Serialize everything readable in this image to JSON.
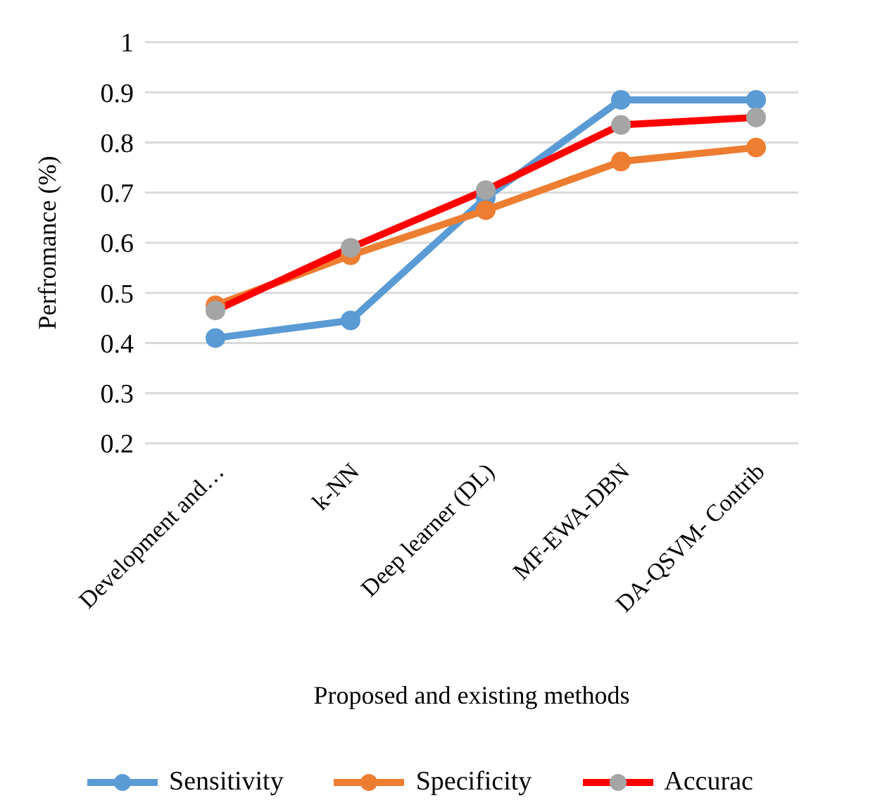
{
  "chart_data": {
    "type": "line",
    "xlabel": "Proposed and existing methods",
    "ylabel": "Perfromance (%)",
    "categories": [
      "Development and…",
      "k-NN",
      "Deep learner (DL)",
      "MF-EWA-DBN",
      "DA-QSVM- Contrib"
    ],
    "series": [
      {
        "name": "Sensitivity",
        "color": "#5b9bd5",
        "values": [
          0.41,
          0.445,
          0.69,
          0.885,
          0.885
        ]
      },
      {
        "name": "Specificity",
        "color": "#ed7d31",
        "values": [
          0.475,
          0.575,
          0.665,
          0.762,
          0.79
        ]
      },
      {
        "name": "Accurac",
        "color": "#ff0000",
        "values": [
          0.465,
          0.59,
          0.705,
          0.835,
          0.85
        ]
      }
    ],
    "ylim": [
      0.2,
      1
    ],
    "yticks": [
      0.2,
      0.3,
      0.4,
      0.5,
      0.6,
      0.7,
      0.8,
      0.9,
      1
    ],
    "grid": "y",
    "legend": "bottom",
    "marker": "circle",
    "line_style": "solid"
  }
}
